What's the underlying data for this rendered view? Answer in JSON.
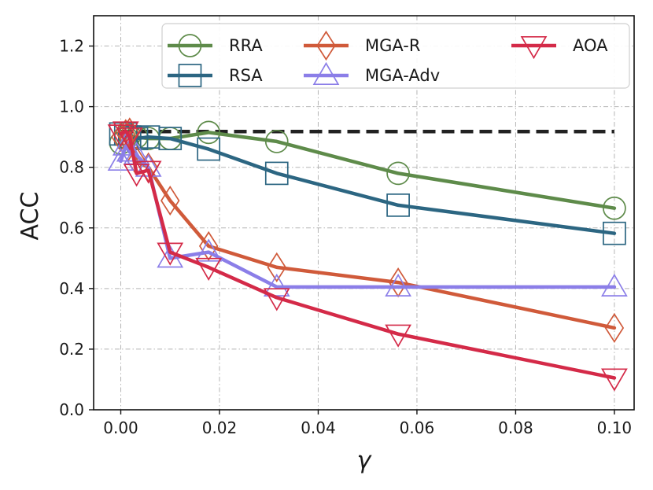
{
  "chart_data": {
    "type": "line",
    "xlabel": "γ",
    "ylabel": "ACC",
    "xlim": [
      -0.0055,
      0.104
    ],
    "ylim": [
      0.0,
      1.3
    ],
    "xticks": [
      0.0,
      0.02,
      0.04,
      0.06,
      0.08,
      0.1
    ],
    "xtick_labels": [
      "0.00",
      "0.02",
      "0.04",
      "0.06",
      "0.08",
      "0.10"
    ],
    "yticks": [
      0.0,
      0.2,
      0.4,
      0.6,
      0.8,
      1.0,
      1.2
    ],
    "ytick_labels": [
      "0.0",
      "0.2",
      "0.4",
      "0.6",
      "0.8",
      "1.0",
      "1.2"
    ],
    "grid": true,
    "legend_position": "top-right",
    "reference_line": {
      "y": 0.918,
      "x_range": [
        0.0,
        0.1
      ],
      "style": "dashed",
      "color": "#222222"
    },
    "series": [
      {
        "name": "RRA",
        "color": "#5e8b4a",
        "marker": "circle",
        "x": [
          0.0,
          0.001,
          0.0018,
          0.0032,
          0.0056,
          0.01,
          0.0178,
          0.0316,
          0.0562,
          0.1
        ],
        "y": [
          0.88,
          0.9,
          0.905,
          0.9,
          0.895,
          0.895,
          0.915,
          0.885,
          0.78,
          0.665
        ]
      },
      {
        "name": "RSA",
        "color": "#2c6682",
        "marker": "square",
        "x": [
          0.0,
          0.001,
          0.0018,
          0.0032,
          0.0056,
          0.01,
          0.0178,
          0.0316,
          0.0562,
          0.1
        ],
        "y": [
          0.91,
          0.91,
          0.9,
          0.895,
          0.9,
          0.895,
          0.86,
          0.78,
          0.675,
          0.582
        ]
      },
      {
        "name": "MGA-R",
        "color": "#d05a3a",
        "marker": "diamond",
        "x": [
          0.0,
          0.001,
          0.0018,
          0.0032,
          0.0056,
          0.01,
          0.0178,
          0.0316,
          0.0562,
          0.1
        ],
        "y": [
          0.9,
          0.91,
          0.915,
          0.82,
          0.8,
          0.69,
          0.54,
          0.47,
          0.42,
          0.27
        ]
      },
      {
        "name": "MGA-Adv",
        "color": "#8b7ee8",
        "marker": "triangle-up",
        "x": [
          0.0,
          0.001,
          0.0018,
          0.0032,
          0.0056,
          0.01,
          0.0178,
          0.0316,
          0.0562,
          0.1
        ],
        "y": [
          0.82,
          0.87,
          0.85,
          0.84,
          0.8,
          0.5,
          0.52,
          0.405,
          0.405,
          0.405
        ]
      },
      {
        "name": "AOA",
        "color": "#d42a48",
        "marker": "triangle-down",
        "x": [
          0.0,
          0.001,
          0.0018,
          0.0032,
          0.0056,
          0.01,
          0.0178,
          0.0316,
          0.0562,
          0.1
        ],
        "y": [
          0.91,
          0.92,
          0.9,
          0.78,
          0.79,
          0.52,
          0.47,
          0.37,
          0.25,
          0.105
        ]
      }
    ]
  }
}
